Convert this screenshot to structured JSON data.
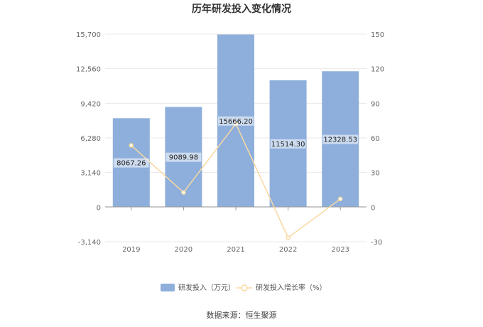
{
  "chart_data": {
    "type": "bar",
    "title": "历年研发投入变化情况",
    "categories": [
      "2019",
      "2020",
      "2021",
      "2022",
      "2023"
    ],
    "series": [
      {
        "name": "研发投入（万元）",
        "type": "bar",
        "axis": "left",
        "values": [
          8067.26,
          9089.98,
          15666.2,
          11514.3,
          12328.53
        ],
        "labels": [
          "8067.26",
          "9089.98",
          "15666.20",
          "11514.30",
          "12328.53"
        ],
        "color": "#8eafdc"
      },
      {
        "name": "研发投入增长率（%）",
        "type": "line",
        "axis": "right",
        "values": [
          53.5,
          12.7,
          72.3,
          -26.5,
          7.1
        ],
        "color": "#f8d8a0"
      }
    ],
    "y_left": {
      "ylim": [
        -3140,
        15700
      ],
      "ticks": [
        "15,700",
        "12,560",
        "9,420",
        "6,280",
        "3,140",
        "0",
        "-3,140"
      ],
      "tick_values": [
        15700,
        12560,
        9420,
        6280,
        3140,
        0,
        -3140
      ]
    },
    "y_right": {
      "ylim": [
        -30,
        150
      ],
      "ticks": [
        "150",
        "120",
        "90",
        "60",
        "30",
        "0",
        "-30"
      ],
      "tick_values": [
        150,
        120,
        90,
        60,
        30,
        0,
        -30
      ]
    },
    "grid": true,
    "legend_position": "bottom"
  },
  "source": "数据来源：恒生聚源"
}
